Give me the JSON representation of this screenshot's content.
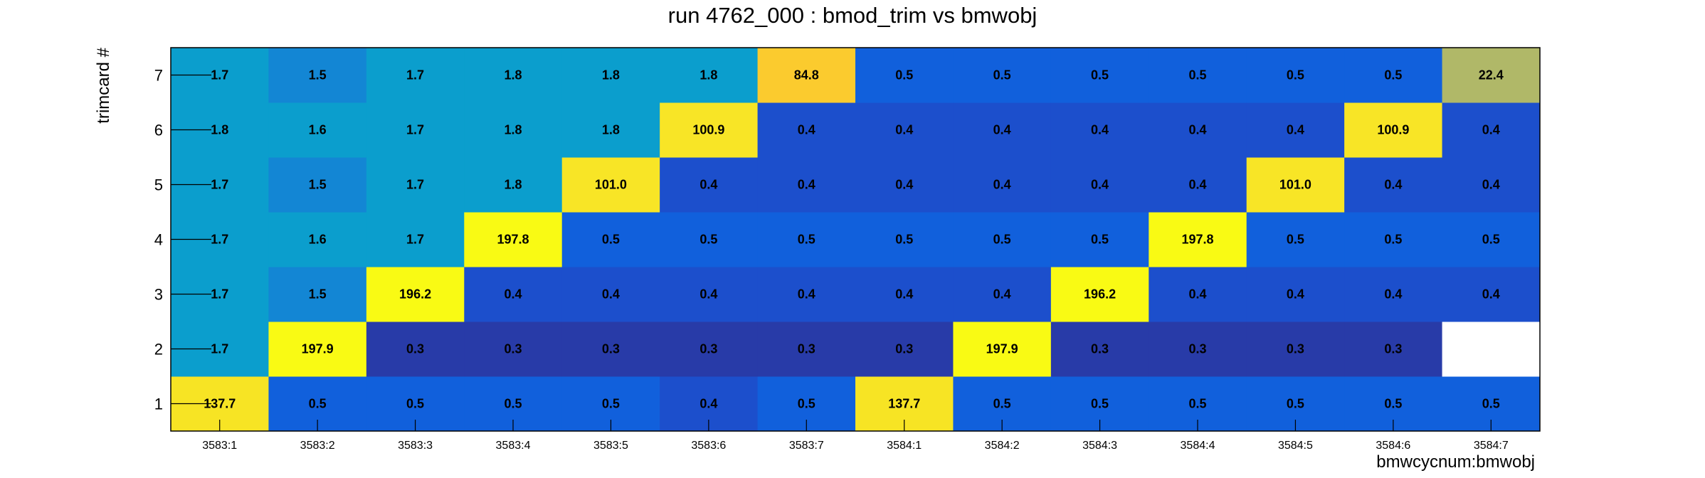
{
  "chart_data": {
    "type": "heatmap",
    "title": "run 4762_000 : bmod_trim vs bmwobj",
    "xlabel": "bmwcycnum:bmwobj",
    "ylabel": "trimcard #",
    "x_categories": [
      "3583:1",
      "3583:2",
      "3583:3",
      "3583:4",
      "3583:5",
      "3583:6",
      "3583:7",
      "3584:1",
      "3584:2",
      "3584:3",
      "3584:4",
      "3584:5",
      "3584:6",
      "3584:7"
    ],
    "y_categories": [
      "1",
      "2",
      "3",
      "4",
      "5",
      "6",
      "7"
    ],
    "rows": [
      [
        "137.7",
        "0.5",
        "0.5",
        "0.5",
        "0.5",
        "0.4",
        "0.5",
        "137.7",
        "0.5",
        "0.5",
        "0.5",
        "0.5",
        "0.5",
        "0.5"
      ],
      [
        "1.7",
        "197.9",
        "0.3",
        "0.3",
        "0.3",
        "0.3",
        "0.3",
        "0.3",
        "197.9",
        "0.3",
        "0.3",
        "0.3",
        "0.3",
        null
      ],
      [
        "1.7",
        "1.5",
        "196.2",
        "0.4",
        "0.4",
        "0.4",
        "0.4",
        "0.4",
        "0.4",
        "196.2",
        "0.4",
        "0.4",
        "0.4",
        "0.4"
      ],
      [
        "1.7",
        "1.6",
        "1.7",
        "197.8",
        "0.5",
        "0.5",
        "0.5",
        "0.5",
        "0.5",
        "0.5",
        "197.8",
        "0.5",
        "0.5",
        "0.5"
      ],
      [
        "1.7",
        "1.5",
        "1.7",
        "1.8",
        "101.0",
        "0.4",
        "0.4",
        "0.4",
        "0.4",
        "0.4",
        "0.4",
        "101.0",
        "0.4",
        "0.4"
      ],
      [
        "1.8",
        "1.6",
        "1.7",
        "1.8",
        "1.8",
        "100.9",
        "0.4",
        "0.4",
        "0.4",
        "0.4",
        "0.4",
        "0.4",
        "100.9",
        "0.4"
      ],
      [
        "1.7",
        "1.5",
        "1.7",
        "1.8",
        "1.8",
        "1.8",
        "84.8",
        "0.5",
        "0.5",
        "0.5",
        "0.5",
        "0.5",
        "0.5",
        "22.4"
      ]
    ],
    "colors": {
      "empty": "#ffffff",
      "v0_3": "#283ba8",
      "v0_4": "#1c4fcc",
      "v0_5": "#1160dc",
      "v1_5": "#1386d4",
      "v1_7": "#0b9ecd",
      "v22_4": "#b0b868",
      "v84_8": "#fbcb2e",
      "v101": "#f8e526",
      "v137": "#f7e424",
      "v197": "#f9fa14"
    }
  }
}
